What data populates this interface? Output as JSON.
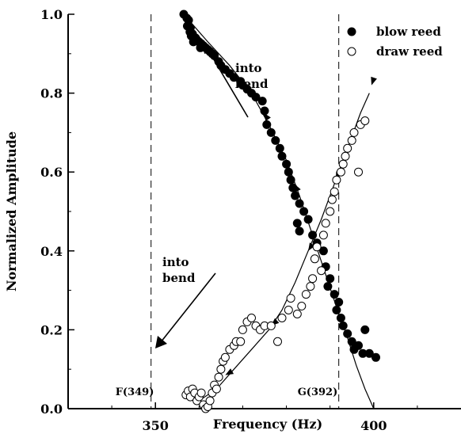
{
  "chart_data": {
    "type": "scatter",
    "title": "",
    "xlabel": "Frequency (Hz)",
    "ylabel": "Normalized Amplitude",
    "xlim": [
      330,
      420
    ],
    "ylim": [
      0,
      1.0
    ],
    "x_ticks": [
      350,
      400
    ],
    "y_ticks": [
      0.0,
      0.2,
      0.4,
      0.6,
      0.8,
      1.0
    ],
    "x_tick_labels": [
      "350",
      "400"
    ],
    "y_tick_labels": [
      "0.0",
      "0.2",
      "0.4",
      "0.6",
      "0.8",
      "1.0"
    ],
    "grid": false,
    "legend": {
      "position": "top-right",
      "entries": [
        "blow reed",
        "draw reed"
      ]
    },
    "reference_lines": [
      {
        "x": 349,
        "label": "F(349)"
      },
      {
        "x": 392,
        "label": "G(392)"
      }
    ],
    "annotations": [
      {
        "text": [
          "into",
          "bend"
        ],
        "x": 354,
        "y": 0.33
      },
      {
        "text": [
          "into",
          "bend"
        ],
        "x": 379.5,
        "y": 0.86
      }
    ],
    "series": [
      {
        "name": "blow reed",
        "marker": "filled-circle",
        "points": [
          [
            356.5,
            1.0
          ],
          [
            357.2,
            0.99
          ],
          [
            357.6,
            0.985
          ],
          [
            357.3,
            0.97
          ],
          [
            358.0,
            0.965
          ],
          [
            357.9,
            0.955
          ],
          [
            358.5,
            0.95
          ],
          [
            358.2,
            0.945
          ],
          [
            358.8,
            0.942
          ],
          [
            359.2,
            0.94
          ],
          [
            359.5,
            0.935
          ],
          [
            358.7,
            0.93
          ],
          [
            360.0,
            0.93
          ],
          [
            360.5,
            0.925
          ],
          [
            361.0,
            0.92
          ],
          [
            360.3,
            0.915
          ],
          [
            361.5,
            0.915
          ],
          [
            362.0,
            0.91
          ],
          [
            362.5,
            0.905
          ],
          [
            363.0,
            0.9
          ],
          [
            363.5,
            0.895
          ],
          [
            364.5,
            0.88
          ],
          [
            365.0,
            0.87
          ],
          [
            366.0,
            0.86
          ],
          [
            367.0,
            0.85
          ],
          [
            368.0,
            0.84
          ],
          [
            369.5,
            0.83
          ],
          [
            370.0,
            0.82
          ],
          [
            371.0,
            0.81
          ],
          [
            372.0,
            0.8
          ],
          [
            373.0,
            0.79
          ],
          [
            374.5,
            0.78
          ],
          [
            375.0,
            0.755
          ],
          [
            375.5,
            0.72
          ],
          [
            376.5,
            0.7
          ],
          [
            377.5,
            0.68
          ],
          [
            378.5,
            0.66
          ],
          [
            379.0,
            0.64
          ],
          [
            380.0,
            0.62
          ],
          [
            380.5,
            0.6
          ],
          [
            381.0,
            0.58
          ],
          [
            381.5,
            0.56
          ],
          [
            382.0,
            0.54
          ],
          [
            383.0,
            0.52
          ],
          [
            384.0,
            0.5
          ],
          [
            382.5,
            0.47
          ],
          [
            383.0,
            0.45
          ],
          [
            385.0,
            0.48
          ],
          [
            386.0,
            0.44
          ],
          [
            387.0,
            0.42
          ],
          [
            388.5,
            0.4
          ],
          [
            389.0,
            0.36
          ],
          [
            390.0,
            0.33
          ],
          [
            389.5,
            0.31
          ],
          [
            391.0,
            0.29
          ],
          [
            392.0,
            0.27
          ],
          [
            391.5,
            0.25
          ],
          [
            392.5,
            0.23
          ],
          [
            393.0,
            0.21
          ],
          [
            394.0,
            0.19
          ],
          [
            395.0,
            0.17
          ],
          [
            395.5,
            0.15
          ],
          [
            396.5,
            0.16
          ],
          [
            397.5,
            0.14
          ],
          [
            398.0,
            0.2
          ],
          [
            399.0,
            0.14
          ],
          [
            400.5,
            0.13
          ]
        ]
      },
      {
        "name": "draw reed",
        "marker": "open-circle",
        "points": [
          [
            357.0,
            0.035
          ],
          [
            357.5,
            0.045
          ],
          [
            358.0,
            0.03
          ],
          [
            358.5,
            0.05
          ],
          [
            359.0,
            0.04
          ],
          [
            359.5,
            0.02
          ],
          [
            360.0,
            0.03
          ],
          [
            360.5,
            0.04
          ],
          [
            361.0,
            0.01
          ],
          [
            361.5,
            0.0
          ],
          [
            362.0,
            0.005
          ],
          [
            362.5,
            0.02
          ],
          [
            363.0,
            0.04
          ],
          [
            363.5,
            0.06
          ],
          [
            364.0,
            0.05
          ],
          [
            364.5,
            0.08
          ],
          [
            365.0,
            0.1
          ],
          [
            365.5,
            0.12
          ],
          [
            366.0,
            0.13
          ],
          [
            367.0,
            0.15
          ],
          [
            368.0,
            0.16
          ],
          [
            368.5,
            0.17
          ],
          [
            369.5,
            0.17
          ],
          [
            370.0,
            0.2
          ],
          [
            371.0,
            0.22
          ],
          [
            372.0,
            0.23
          ],
          [
            373.0,
            0.21
          ],
          [
            374.0,
            0.2
          ],
          [
            375.0,
            0.21
          ],
          [
            376.5,
            0.21
          ],
          [
            378.0,
            0.17
          ],
          [
            379.0,
            0.23
          ],
          [
            380.5,
            0.25
          ],
          [
            381.0,
            0.28
          ],
          [
            382.5,
            0.24
          ],
          [
            383.5,
            0.26
          ],
          [
            384.5,
            0.29
          ],
          [
            385.5,
            0.31
          ],
          [
            386.0,
            0.33
          ],
          [
            386.5,
            0.38
          ],
          [
            387.0,
            0.41
          ],
          [
            388.0,
            0.35
          ],
          [
            388.5,
            0.44
          ],
          [
            389.0,
            0.47
          ],
          [
            390.0,
            0.5
          ],
          [
            390.5,
            0.53
          ],
          [
            391.0,
            0.55
          ],
          [
            391.5,
            0.58
          ],
          [
            392.5,
            0.6
          ],
          [
            393.0,
            0.62
          ],
          [
            393.5,
            0.64
          ],
          [
            394.0,
            0.66
          ],
          [
            395.0,
            0.68
          ],
          [
            395.5,
            0.7
          ],
          [
            397.0,
            0.72
          ],
          [
            398.0,
            0.73
          ],
          [
            396.5,
            0.6
          ]
        ]
      }
    ],
    "curves": [
      {
        "name": "blow-fit",
        "points": [
          [
            356.5,
            1.0
          ],
          [
            362,
            0.93
          ],
          [
            367,
            0.87
          ],
          [
            372,
            0.8
          ],
          [
            376,
            0.72
          ],
          [
            380,
            0.63
          ],
          [
            383,
            0.54
          ],
          [
            386,
            0.44
          ],
          [
            389,
            0.34
          ],
          [
            392,
            0.24
          ],
          [
            394,
            0.18
          ],
          [
            396,
            0.11
          ],
          [
            398,
            0.05
          ],
          [
            400,
            0.0
          ]
        ]
      },
      {
        "name": "draw-fit",
        "points": [
          [
            360,
            0.02
          ],
          [
            364,
            0.05
          ],
          [
            368,
            0.1
          ],
          [
            372,
            0.15
          ],
          [
            376,
            0.2
          ],
          [
            379,
            0.25
          ],
          [
            382,
            0.32
          ],
          [
            385,
            0.4
          ],
          [
            388,
            0.48
          ],
          [
            391,
            0.57
          ],
          [
            394,
            0.66
          ],
          [
            397,
            0.75
          ],
          [
            399,
            0.8
          ]
        ]
      }
    ]
  }
}
